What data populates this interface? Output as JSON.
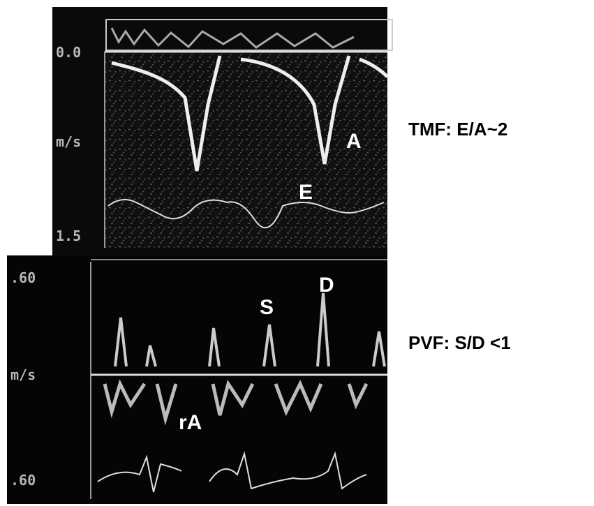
{
  "tmf_panel": {
    "scale_top": "0.0",
    "unit": "m/s",
    "scale_bottom": "1.5",
    "labels": {
      "e": "E",
      "a": "A"
    }
  },
  "pvf_panel": {
    "scale_top": ".60",
    "unit": "m/s",
    "scale_bottom": ".60",
    "labels": {
      "s": "S",
      "d": "D",
      "ra": "rA"
    }
  },
  "captions": {
    "tmf": "TMF: E/A~2",
    "pvf": "PVF: S/D <1"
  }
}
